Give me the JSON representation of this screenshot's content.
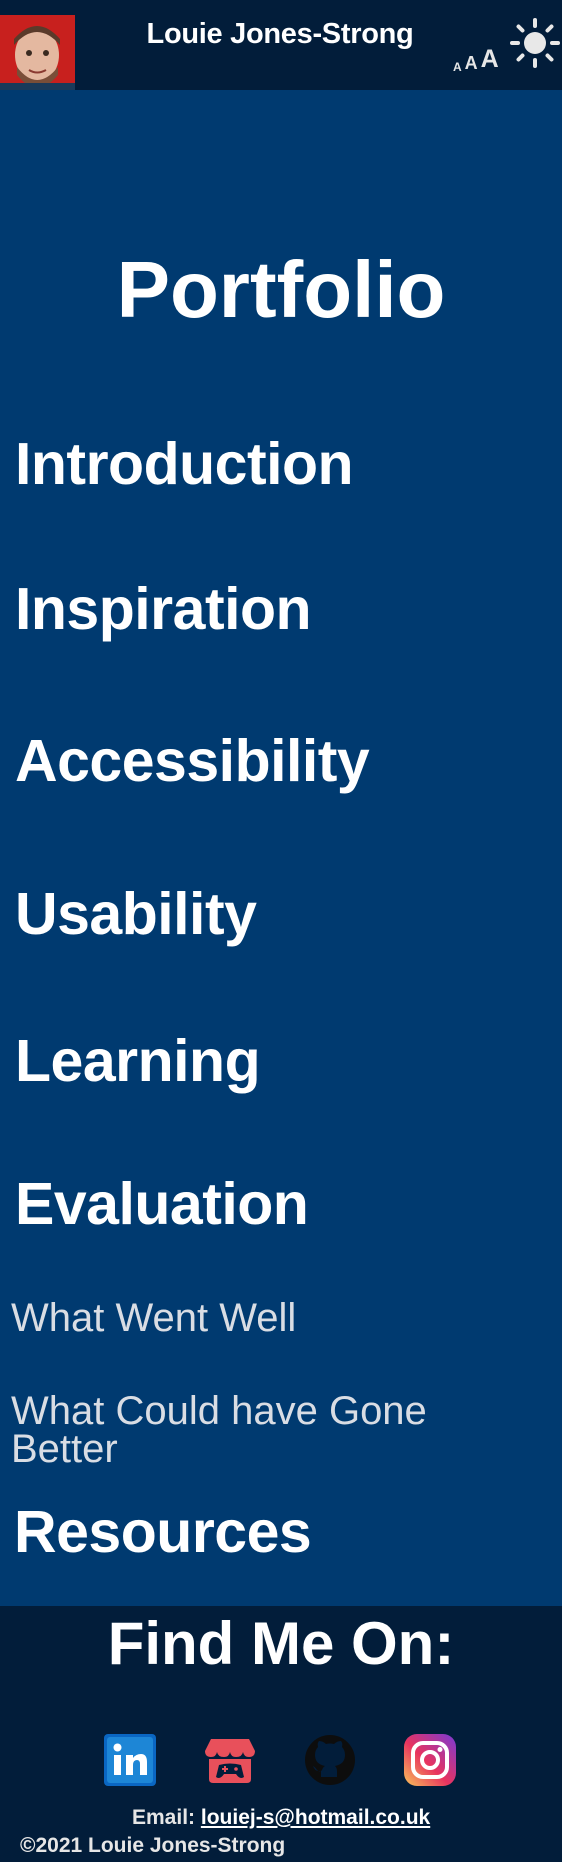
{
  "header": {
    "title": "Louie Jones-Strong",
    "font_controls": [
      "A",
      "A",
      "A"
    ]
  },
  "main": {
    "title": "Portfolio",
    "sections": [
      "Introduction",
      "Inspiration",
      "Accessibility",
      "Usability",
      "Learning",
      "Evaluation"
    ],
    "evaluation_subsections": [
      "What Went Well",
      "What Could have Gone Better"
    ],
    "resources": "Resources"
  },
  "footer": {
    "heading": "Find Me On:",
    "socials": [
      "linkedin-icon",
      "itch-icon",
      "github-icon",
      "instagram-icon"
    ],
    "email_label": "Email:",
    "email": "louiej-s@hotmail.co.uk",
    "copyright": "©2021 Louie Jones-Strong"
  },
  "colors": {
    "main_bg": "#003a70",
    "header_bg": "#021d3a",
    "text": "#ffffff",
    "subtext": "#d9dde4"
  }
}
